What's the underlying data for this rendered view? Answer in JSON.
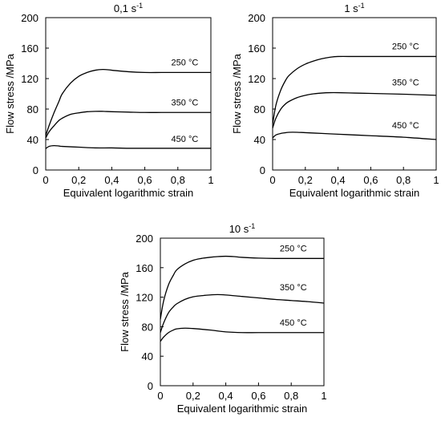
{
  "chart_data": [
    {
      "type": "line",
      "title": "0,1 s",
      "title_sup": "-1",
      "xlabel": "Equivalent logarithmic strain",
      "ylabel": "Flow stress /MPa",
      "xlim": [
        0,
        1
      ],
      "ylim": [
        0,
        200
      ],
      "xticks": [
        "0",
        "0,2",
        "0,4",
        "0,6",
        "0,8",
        "1"
      ],
      "xtick_values": [
        0,
        0.2,
        0.4,
        0.6,
        0.8,
        1
      ],
      "yticks": [
        "0",
        "40",
        "80",
        "120",
        "160",
        "200"
      ],
      "ytick_values": [
        0,
        40,
        80,
        120,
        160,
        200
      ],
      "series": [
        {
          "name": "250 °C",
          "x": [
            0,
            0.02,
            0.05,
            0.08,
            0.1,
            0.15,
            0.2,
            0.25,
            0.3,
            0.35,
            0.4,
            0.5,
            0.6,
            0.7,
            0.8,
            0.9,
            1.0
          ],
          "y": [
            45,
            58,
            75,
            90,
            100,
            114,
            123,
            128,
            131,
            132,
            131,
            129,
            128,
            128,
            128,
            128,
            128
          ]
        },
        {
          "name": "350 °C",
          "x": [
            0,
            0.02,
            0.05,
            0.08,
            0.1,
            0.15,
            0.2,
            0.25,
            0.3,
            0.35,
            0.4,
            0.5,
            0.6,
            0.7,
            0.8,
            0.9,
            1.0
          ],
          "y": [
            42,
            50,
            58,
            65,
            68,
            73,
            75,
            76.5,
            77,
            77,
            76.5,
            76,
            75.5,
            75.5,
            75.5,
            75.5,
            75.5
          ]
        },
        {
          "name": "450 °C",
          "x": [
            0,
            0.02,
            0.05,
            0.08,
            0.1,
            0.2,
            0.3,
            0.4,
            0.5,
            0.6,
            0.8,
            1.0
          ],
          "y": [
            28,
            31,
            32,
            31.5,
            31,
            30,
            29,
            29,
            28.5,
            28.5,
            28.5,
            28.5
          ]
        }
      ]
    },
    {
      "type": "line",
      "title": "1 s",
      "title_sup": "-1",
      "xlabel": "Equivalent logarithmic strain",
      "ylabel": "Flow stress /MPa",
      "xlim": [
        0,
        1
      ],
      "ylim": [
        0,
        200
      ],
      "xticks": [
        "0",
        "0,2",
        "0,4",
        "0,6",
        "0,8",
        "1"
      ],
      "xtick_values": [
        0,
        0.2,
        0.4,
        0.6,
        0.8,
        1
      ],
      "yticks": [
        "0",
        "40",
        "80",
        "120",
        "160",
        "200"
      ],
      "ytick_values": [
        0,
        40,
        80,
        120,
        160,
        200
      ],
      "series": [
        {
          "name": "250 °C",
          "x": [
            0,
            0.02,
            0.05,
            0.08,
            0.1,
            0.15,
            0.2,
            0.25,
            0.3,
            0.35,
            0.4,
            0.5,
            0.6,
            0.8,
            1.0
          ],
          "y": [
            60,
            85,
            105,
            118,
            124,
            133,
            139,
            143,
            146,
            148,
            149,
            149,
            149,
            149,
            149
          ]
        },
        {
          "name": "350 °C",
          "x": [
            0,
            0.02,
            0.05,
            0.08,
            0.1,
            0.15,
            0.2,
            0.25,
            0.3,
            0.35,
            0.4,
            0.5,
            0.6,
            0.8,
            1.0
          ],
          "y": [
            55,
            68,
            80,
            87,
            90,
            95,
            98,
            100,
            101,
            101.5,
            101.5,
            101,
            100.5,
            99.5,
            98
          ]
        },
        {
          "name": "450 °C",
          "x": [
            0,
            0.02,
            0.05,
            0.08,
            0.1,
            0.15,
            0.2,
            0.3,
            0.4,
            0.5,
            0.6,
            0.8,
            1.0
          ],
          "y": [
            42,
            46,
            48,
            49,
            49.5,
            49.5,
            49,
            48,
            47,
            46,
            45,
            43,
            40
          ]
        }
      ]
    },
    {
      "type": "line",
      "title": "10 s",
      "title_sup": "-1",
      "xlabel": "Equivalent logarithmic strain",
      "ylabel": "Flow stress /MPa",
      "xlim": [
        0,
        1
      ],
      "ylim": [
        0,
        200
      ],
      "xticks": [
        "0",
        "0,2",
        "0,4",
        "0,6",
        "0,8",
        "1"
      ],
      "xtick_values": [
        0,
        0.2,
        0.4,
        0.6,
        0.8,
        1
      ],
      "yticks": [
        "0",
        "40",
        "80",
        "120",
        "160",
        "200"
      ],
      "ytick_values": [
        0,
        40,
        80,
        120,
        160,
        200
      ],
      "series": [
        {
          "name": "250 °C",
          "x": [
            0,
            0.02,
            0.05,
            0.08,
            0.1,
            0.15,
            0.2,
            0.25,
            0.3,
            0.35,
            0.4,
            0.45,
            0.5,
            0.6,
            0.7,
            0.8,
            1.0
          ],
          "y": [
            90,
            115,
            137,
            150,
            157,
            165,
            170,
            172.5,
            174,
            175,
            175.5,
            175,
            174,
            173,
            172.5,
            172.5,
            172.5
          ]
        },
        {
          "name": "350 °C",
          "x": [
            0,
            0.02,
            0.05,
            0.08,
            0.1,
            0.15,
            0.2,
            0.25,
            0.3,
            0.35,
            0.4,
            0.5,
            0.6,
            0.7,
            0.8,
            0.9,
            1.0
          ],
          "y": [
            72,
            85,
            99,
            107,
            111,
            117,
            120.5,
            122,
            123,
            123.5,
            123,
            121,
            119,
            117,
            115.5,
            114,
            112
          ]
        },
        {
          "name": "450 °C",
          "x": [
            0,
            0.02,
            0.05,
            0.08,
            0.1,
            0.15,
            0.2,
            0.3,
            0.4,
            0.5,
            0.6,
            0.8,
            1.0
          ],
          "y": [
            60,
            66,
            72,
            75.5,
            77,
            78,
            77.5,
            75.5,
            73,
            72,
            72,
            72,
            72
          ]
        }
      ]
    }
  ]
}
